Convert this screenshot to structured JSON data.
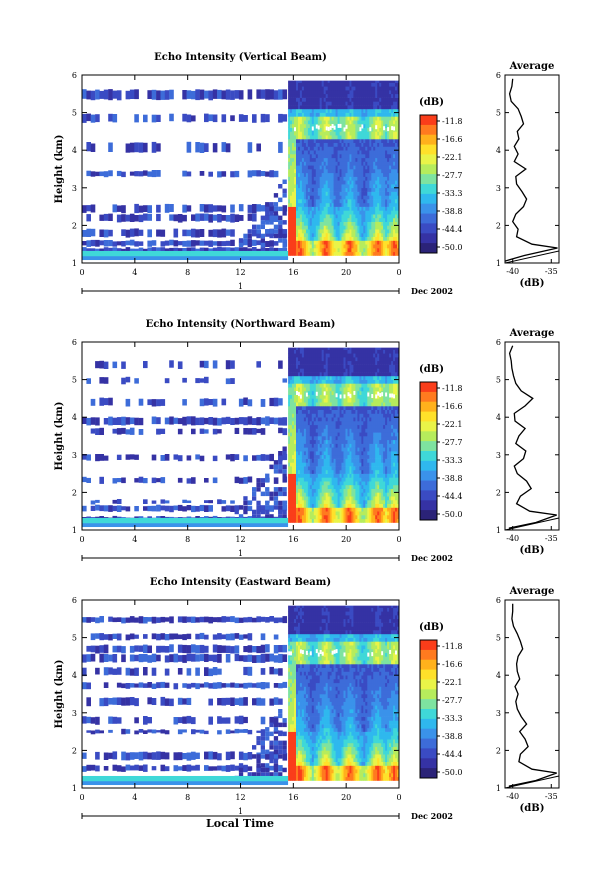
{
  "figure": {
    "xlabel": "Local Time",
    "date_label": "Dec 2002",
    "day_label": "1",
    "colorbar_unit": "(dB)",
    "colorbar_ticks": [
      "-11.8",
      "-16.6",
      "-22.1",
      "-27.7",
      "-33.3",
      "-38.8",
      "-44.4",
      "-50.0"
    ],
    "colors": [
      "#fa3d1a",
      "#ff7a1f",
      "#ffb11c",
      "#ffe12a",
      "#e9f448",
      "#b6ec5c",
      "#7ee3a0",
      "#3fd8d8",
      "#2fb8ee",
      "#3a92ea",
      "#3d6cd9",
      "#3a4bc3",
      "#3532a4",
      "#2b2378"
    ]
  },
  "chart_data": [
    {
      "type": "heatmap",
      "title": "Echo Intensity (Vertical Beam)",
      "ylabel": "Height (km)",
      "xlim": [
        0,
        24
      ],
      "ylim": [
        1,
        6
      ],
      "x_ticks": [
        "0",
        "4",
        "8",
        "12",
        "16",
        "20",
        "0"
      ],
      "y_ticks": [
        "1",
        "2",
        "3",
        "4",
        "5",
        "6"
      ],
      "profile": {
        "title": "Average",
        "xlabel": "(dB)",
        "x_ticks": [
          "-40",
          "-35"
        ],
        "xlim": [
          -41,
          -34
        ],
        "heights": [
          1.05,
          1.2,
          1.4,
          1.5,
          1.7,
          1.9,
          2.1,
          2.3,
          2.5,
          2.7,
          2.9,
          3.1,
          3.3,
          3.5,
          3.7,
          3.9,
          4.1,
          4.3,
          4.5,
          4.7,
          4.9,
          5.1,
          5.3,
          5.5,
          5.7,
          5.9
        ],
        "values": [
          -41,
          -38.5,
          -34.2,
          -37.5,
          -39.5,
          -39.3,
          -40.0,
          -39.6,
          -38.6,
          -38.2,
          -38.8,
          -39.5,
          -39.6,
          -38.3,
          -39.8,
          -39.3,
          -39.8,
          -39.2,
          -39.4,
          -38.6,
          -38.9,
          -39.3,
          -40.2,
          -40.4,
          -40.1,
          -40.0
        ]
      }
    },
    {
      "type": "heatmap",
      "title": "Echo Intensity (Northward Beam)",
      "ylabel": "Height (km)",
      "xlim": [
        0,
        24
      ],
      "ylim": [
        1,
        6
      ],
      "x_ticks": [
        "0",
        "4",
        "8",
        "12",
        "16",
        "20",
        "0"
      ],
      "y_ticks": [
        "1",
        "2",
        "3",
        "4",
        "5",
        "6"
      ],
      "profile": {
        "title": "Average",
        "xlabel": "(dB)",
        "x_ticks": [
          "-40",
          "-35"
        ],
        "xlim": [
          -41,
          -34
        ],
        "heights": [
          1.05,
          1.2,
          1.4,
          1.5,
          1.7,
          1.9,
          2.1,
          2.3,
          2.5,
          2.7,
          2.9,
          3.1,
          3.3,
          3.5,
          3.7,
          3.9,
          4.1,
          4.3,
          4.5,
          4.7,
          4.9,
          5.1,
          5.3,
          5.5,
          5.7,
          5.9
        ],
        "values": [
          -40.5,
          -37.0,
          -34.3,
          -37.8,
          -39.5,
          -39.0,
          -37.6,
          -38.2,
          -39.4,
          -39.8,
          -38.6,
          -38.3,
          -39.6,
          -39.2,
          -38.4,
          -39.7,
          -39.8,
          -38.4,
          -37.4,
          -38.9,
          -39.6,
          -39.9,
          -40.1,
          -40.2,
          -40.4,
          -40.0
        ]
      }
    },
    {
      "type": "heatmap",
      "title": "Echo Intensity (Eastward Beam)",
      "ylabel": "Height (km)",
      "xlim": [
        0,
        24
      ],
      "ylim": [
        1,
        6
      ],
      "x_ticks": [
        "0",
        "4",
        "8",
        "12",
        "16",
        "20",
        "0"
      ],
      "y_ticks": [
        "1",
        "2",
        "3",
        "4",
        "5",
        "6"
      ],
      "profile": {
        "title": "Average",
        "xlabel": "(dB)",
        "x_ticks": [
          "-40",
          "-35"
        ],
        "xlim": [
          -41,
          -34
        ],
        "heights": [
          1.05,
          1.2,
          1.4,
          1.5,
          1.7,
          1.9,
          2.1,
          2.3,
          2.5,
          2.7,
          2.9,
          3.1,
          3.3,
          3.5,
          3.7,
          3.9,
          4.1,
          4.3,
          4.5,
          4.7,
          4.9,
          5.1,
          5.3,
          5.5,
          5.7,
          5.9
        ],
        "values": [
          -40.5,
          -37.0,
          -34.3,
          -37.5,
          -39.2,
          -39.0,
          -38.0,
          -38.4,
          -39.1,
          -38.2,
          -38.9,
          -39.4,
          -39.6,
          -39.3,
          -39.7,
          -39.1,
          -39.4,
          -39.5,
          -39.3,
          -38.7,
          -39.0,
          -39.4,
          -39.9,
          -40.1,
          -40.0,
          -40.0
        ]
      }
    }
  ]
}
